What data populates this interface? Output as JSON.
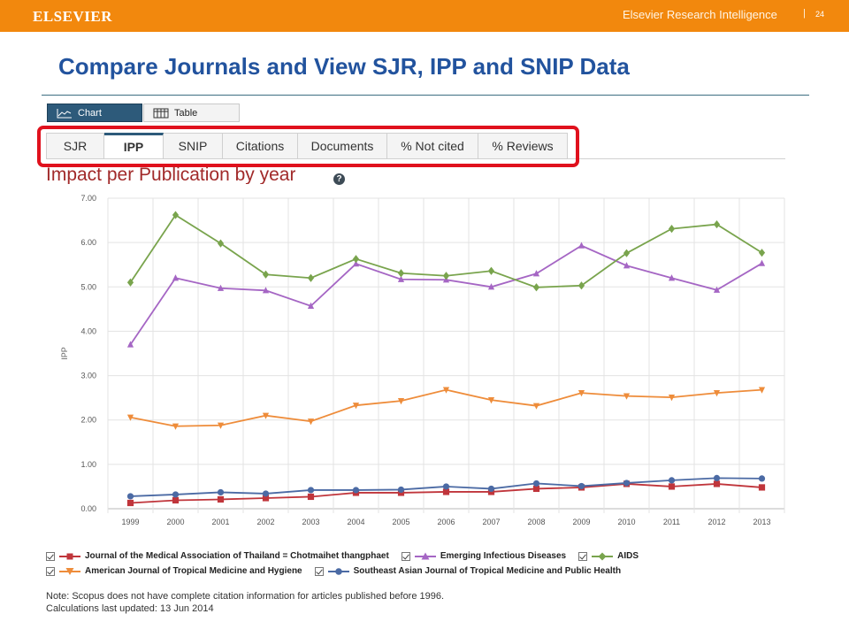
{
  "header": {
    "logo_text": "ELSEVIER",
    "right_text": "Elsevier Research Intelligence",
    "separator": "|",
    "page_number": "24",
    "color": "#f2880d"
  },
  "slide_title": "Compare Journals and View SJR, IPP and SNIP Data",
  "view_toggle": {
    "chart_label": "Chart",
    "table_label": "Table",
    "chart_icon": "line-chart-icon",
    "table_icon": "table-icon"
  },
  "tabs": [
    {
      "label": "SJR",
      "active": false
    },
    {
      "label": "IPP",
      "active": true
    },
    {
      "label": "SNIP",
      "active": false
    },
    {
      "label": "Citations",
      "active": false
    },
    {
      "label": "Documents",
      "active": false
    },
    {
      "label": "% Not cited",
      "active": false
    },
    {
      "label": "% Reviews",
      "active": false
    }
  ],
  "help_icon": "question-icon",
  "chart_data": {
    "type": "line",
    "title": "Impact per Publication by year",
    "ylabel": "IPP",
    "xlabel": "",
    "ylim": [
      0,
      7
    ],
    "y_ticks": [
      "0.00",
      "1.00",
      "2.00",
      "3.00",
      "4.00",
      "5.00",
      "6.00",
      "7.00"
    ],
    "categories": [
      "1999",
      "2000",
      "2001",
      "2002",
      "2003",
      "2004",
      "2005",
      "2006",
      "2007",
      "2008",
      "2009",
      "2010",
      "2011",
      "2012",
      "2013"
    ],
    "grid": true,
    "legend_position": "bottom",
    "series": [
      {
        "name": "Journal of the Medical Association of Thailand = Chotmaihet thangphaet",
        "color": "#c0353b",
        "marker": "square",
        "values": [
          0.13,
          0.19,
          0.21,
          0.24,
          0.27,
          0.36,
          0.36,
          0.38,
          0.38,
          0.45,
          0.48,
          0.56,
          0.5,
          0.56,
          0.48
        ]
      },
      {
        "name": "Emerging Infectious Diseases",
        "color": "#a566c4",
        "marker": "triangle-up",
        "values": [
          3.7,
          5.2,
          4.97,
          4.92,
          4.57,
          5.52,
          5.17,
          5.16,
          5.0,
          5.3,
          5.93,
          5.48,
          5.2,
          4.93,
          5.53
        ]
      },
      {
        "name": "AIDS",
        "color": "#79a44d",
        "marker": "diamond",
        "values": [
          5.1,
          6.62,
          5.98,
          5.28,
          5.2,
          5.63,
          5.31,
          5.25,
          5.36,
          4.99,
          5.03,
          5.76,
          6.31,
          6.41,
          5.77
        ]
      },
      {
        "name": "American Journal of Tropical Medicine and Hygiene",
        "color": "#ee8c3a",
        "marker": "triangle-down",
        "values": [
          2.06,
          1.86,
          1.88,
          2.1,
          1.97,
          2.33,
          2.43,
          2.68,
          2.45,
          2.32,
          2.61,
          2.54,
          2.51,
          2.61,
          2.68
        ]
      },
      {
        "name": "Southeast Asian Journal of Tropical Medicine and Public Health",
        "color": "#4b6aa4",
        "marker": "circle",
        "values": [
          0.28,
          0.32,
          0.37,
          0.34,
          0.42,
          0.42,
          0.43,
          0.5,
          0.45,
          0.57,
          0.51,
          0.58,
          0.64,
          0.69,
          0.68
        ]
      }
    ]
  },
  "note": {
    "line1": "Note: Scopus does not have complete citation information for articles published before 1996.",
    "line2": "Calculations last updated: 13 Jun 2014"
  }
}
